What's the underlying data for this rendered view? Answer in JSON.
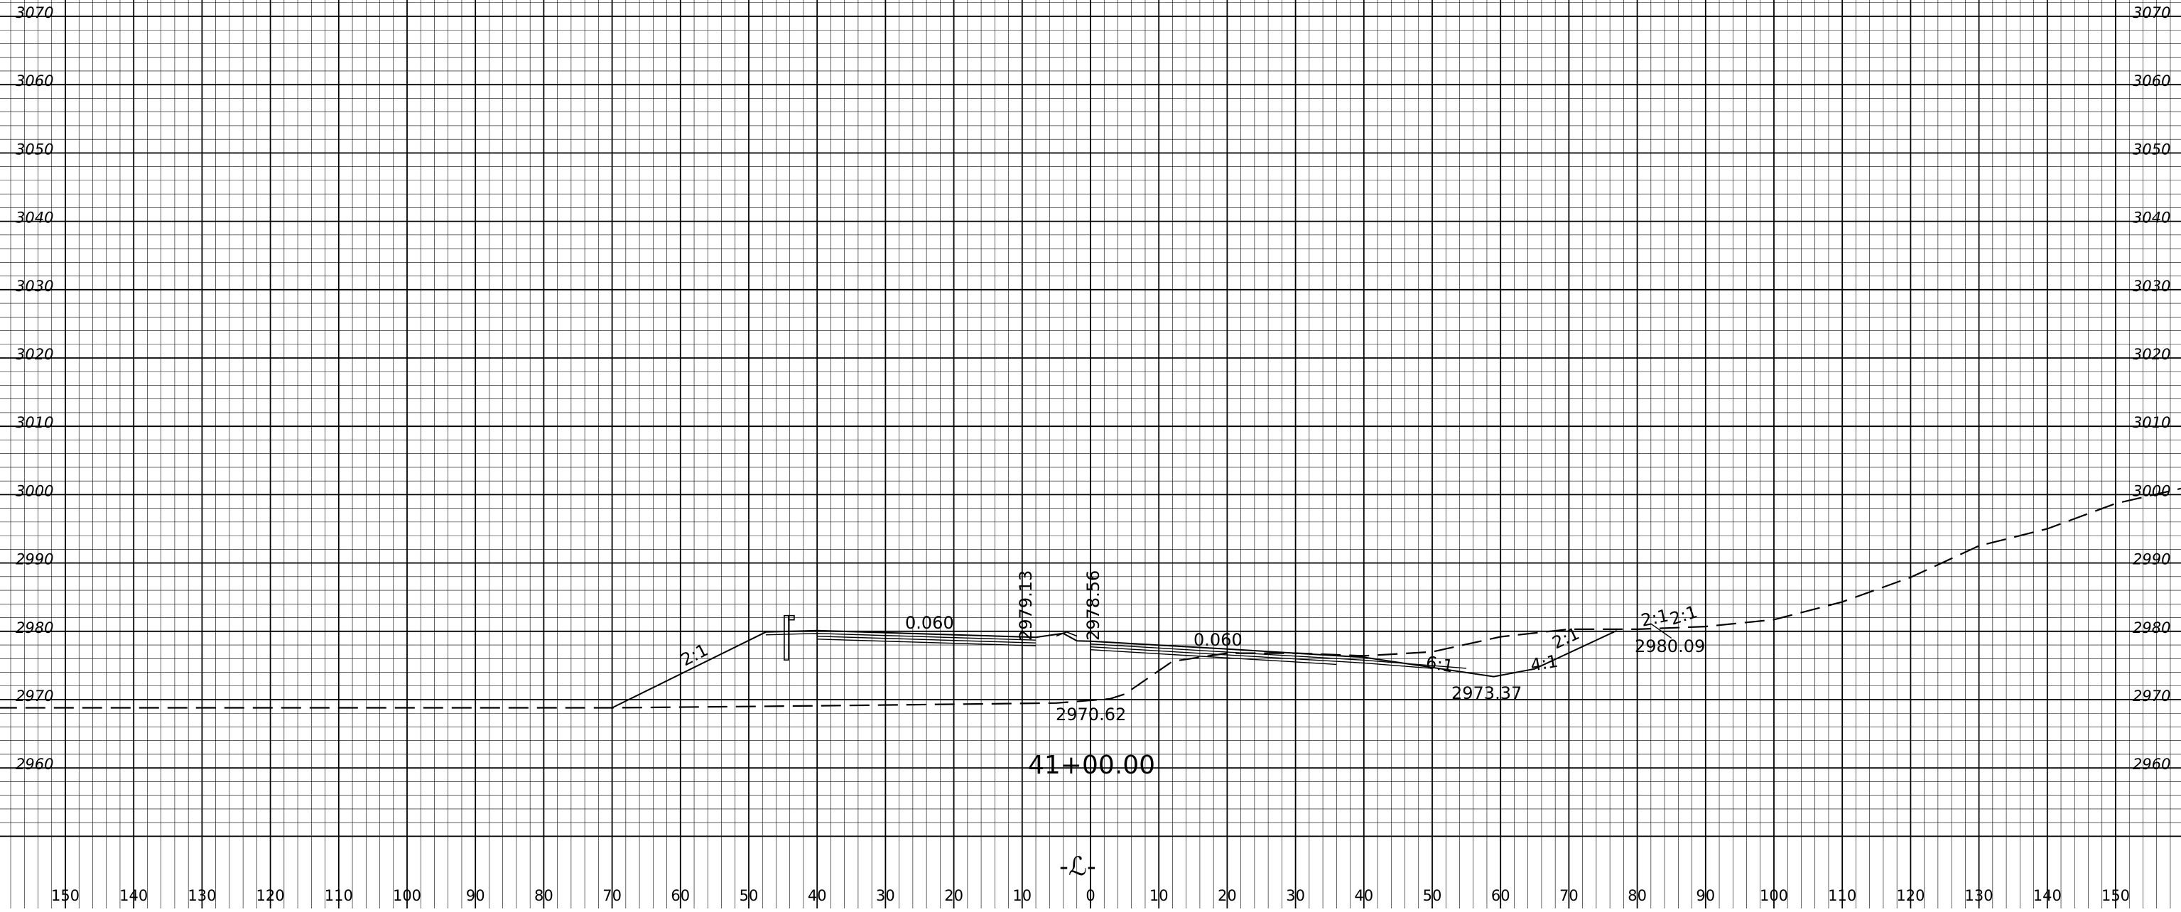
{
  "sheet": {
    "elevation_labels": [
      "3070",
      "3060",
      "3050",
      "3040",
      "3030",
      "3020",
      "3010",
      "3000",
      "2990",
      "2980",
      "2970",
      "2960"
    ],
    "offset_labels": [
      "150",
      "140",
      "130",
      "120",
      "110",
      "100",
      "90",
      "80",
      "70",
      "60",
      "50",
      "40",
      "30",
      "20",
      "10",
      "0",
      "10",
      "20",
      "30",
      "40",
      "50",
      "60",
      "70",
      "80",
      "90",
      "100",
      "110",
      "120",
      "130",
      "140",
      "150"
    ],
    "station": "41+00.00",
    "centerline_symbol": "-ℒ-"
  },
  "annotations": {
    "slope_left": "2:1",
    "cross_slope_left": "0.060",
    "elev_left_edge": "2979.13",
    "elev_right_edge": "2978.56",
    "cross_slope_right": "0.060",
    "slope_ditch_left": "6:1",
    "slope_ditch_right": "4:1",
    "slope_back": "2:1",
    "slope_catch_a": "2:1",
    "slope_catch_b": "2:1",
    "elev_ditch": "2973.37",
    "elev_catch": "2980.09",
    "elev_ground": "2970.62"
  },
  "chart_data": {
    "type": "cross-section",
    "x_unit": "offset (ft)",
    "y_unit": "elevation (ft)",
    "xlim": [
      -160,
      160
    ],
    "ylim": [
      2952,
      3072
    ],
    "grid": true,
    "existing_ground": [
      {
        "x": -160,
        "y": 2968.8
      },
      {
        "x": -70,
        "y": 2968.8
      },
      {
        "x": -40,
        "y": 2969.1
      },
      {
        "x": -5,
        "y": 2969.5
      },
      {
        "x": 2.8,
        "y": 2970.1
      },
      {
        "x": 5,
        "y": 2970.8
      },
      {
        "x": 12,
        "y": 2975.6
      },
      {
        "x": 20,
        "y": 2976.8
      },
      {
        "x": 30,
        "y": 2976.8
      },
      {
        "x": 40,
        "y": 2976.4
      },
      {
        "x": 50,
        "y": 2977.0
      },
      {
        "x": 60,
        "y": 2979.2
      },
      {
        "x": 70,
        "y": 2980.3
      },
      {
        "x": 80,
        "y": 2980.3
      },
      {
        "x": 90,
        "y": 2980.7
      },
      {
        "x": 100,
        "y": 2981.7
      },
      {
        "x": 110,
        "y": 2984.3
      },
      {
        "x": 120,
        "y": 2987.9
      },
      {
        "x": 130,
        "y": 2992.5
      },
      {
        "x": 140,
        "y": 2995.0
      },
      {
        "x": 150,
        "y": 2998.7
      },
      {
        "x": 160,
        "y": 3001.0
      }
    ],
    "proposed_surface": [
      {
        "x": -70,
        "y": 2968.8
      },
      {
        "x": -47.5,
        "y": 2979.9
      },
      {
        "x": -40,
        "y": 2980.1
      },
      {
        "x": -8,
        "y": 2979.13
      },
      {
        "x": -4,
        "y": 2979.7
      },
      {
        "x": -2,
        "y": 2978.6
      },
      {
        "x": 0,
        "y": 2978.56
      },
      {
        "x": 20,
        "y": 2977.4
      },
      {
        "x": 40,
        "y": 2976.2
      },
      {
        "x": 59,
        "y": 2973.37
      },
      {
        "x": 65,
        "y": 2974.5
      },
      {
        "x": 77,
        "y": 2980.09
      }
    ],
    "labels": [
      {
        "text": "2:1",
        "x": -59,
        "y": 2974
      },
      {
        "text": "0.060",
        "x": -23,
        "y": 2980.5
      },
      {
        "text": "2979.13",
        "x": -9,
        "y": 2980
      },
      {
        "text": "2978.56",
        "x": 0.5,
        "y": 2979.5
      },
      {
        "text": "0.060",
        "x": 16,
        "y": 2978.2
      },
      {
        "text": "6:1",
        "x": 50,
        "y": 2975.3
      },
      {
        "text": "4:1",
        "x": 59,
        "y": 2974.6
      },
      {
        "text": "2:1",
        "x": 70,
        "y": 2978.3
      },
      {
        "text": "2:1",
        "x": 83.5,
        "y": 2981.8
      },
      {
        "text": "2:1",
        "x": 88,
        "y": 2982.1
      },
      {
        "text": "2973.37",
        "x": 58,
        "y": 2971.2
      },
      {
        "text": "2980.09",
        "x": 90,
        "y": 2977.2
      },
      {
        "text": "2970.62",
        "x": 0,
        "y": 2967.6
      }
    ]
  }
}
